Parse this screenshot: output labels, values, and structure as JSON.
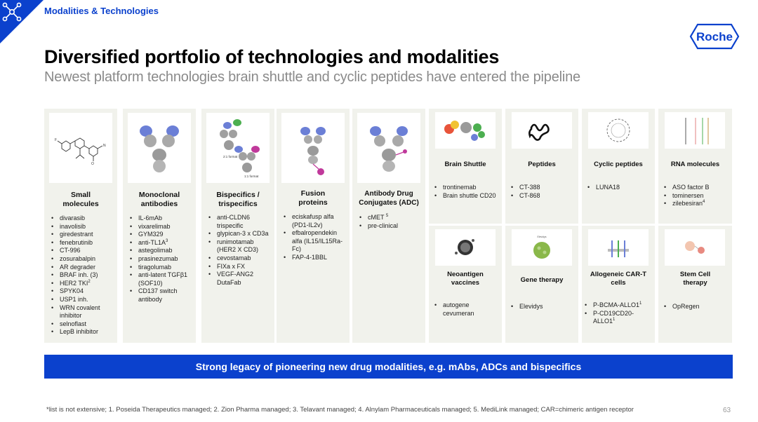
{
  "header": {
    "section": "Modalities & Technologies",
    "logo_text": "Roche",
    "title": "Diversified portfolio of technologies and modalities",
    "subtitle": "Newest platform technologies brain shuttle and cyclic peptides have entered the pipeline"
  },
  "columns": [
    {
      "title": [
        "Small",
        "molecules"
      ],
      "items": [
        "divarasib",
        "inavolisib",
        "giredestrant",
        "fenebrutinib",
        "CT-996",
        "zosurabalpin",
        "AR degrader",
        "BRAF inh. (3)",
        "HER2 TKI",
        "SPYK04",
        "USP1 inh.",
        "WRN covalent inhibitor",
        "selnoflast",
        "LepB inhibitor"
      ]
    },
    {
      "title": [
        "Monoclonal",
        "antibodies"
      ],
      "items": [
        "IL-6mAb",
        "vixarelimab",
        "GYM329",
        "anti-TL1A",
        "astegolimab",
        "prasinezumab",
        "tiragolumab",
        "anti-latent TGFβ1 (SOF10)",
        "CD137 switch antibody"
      ]
    },
    {
      "title": [
        "Bispecifics /",
        "trispecifics"
      ],
      "items": [
        "anti-CLDN6 trispecific",
        "glypican-3 x CD3a",
        "runimotamab (HER2 X CD3)",
        "cevostamab",
        "FIXa x FX",
        "VEGF-ANG2 DutaFab"
      ]
    },
    {
      "title": [
        "Fusion",
        "proteins"
      ],
      "items": [
        "eciskafusp alfa (PD1-IL2v)",
        "efbalropendekin alfa (IL15/IL15Ra-Fc)",
        "FAP-4-1BBL"
      ]
    },
    {
      "title": [
        "Antibody Drug",
        "Conjugates (ADC)"
      ],
      "items": [
        "cMET",
        "pre-clinical"
      ]
    }
  ],
  "sups": {
    "her2": "2",
    "tl1a": "3",
    "cmet": "5",
    "zilebesiran": "4",
    "allo1": "1",
    "allo2": "1"
  },
  "bispecific_labels": {
    "format21": "2:1 format",
    "format11": "1:1 format"
  },
  "gene_label": "Elevidys",
  "cells_top": [
    {
      "title": "Brain Shuttle",
      "items": [
        "trontinemab",
        "Brain shuttle CD20"
      ]
    },
    {
      "title": "Peptides",
      "items": [
        "CT-388",
        "CT-868"
      ]
    },
    {
      "title": "Cyclic peptides",
      "items": [
        "LUNA18"
      ]
    },
    {
      "title": "RNA molecules",
      "items": [
        "ASO factor B",
        "tominersen",
        "zilebesiran"
      ]
    }
  ],
  "cells_bottom": [
    {
      "title": [
        "Neoantigen",
        "vaccines"
      ],
      "items": [
        "autogene cevumeran"
      ]
    },
    {
      "title": [
        "Gene therapy"
      ],
      "items": [
        "Elevidys"
      ]
    },
    {
      "title": [
        "Allogeneic CAR-T",
        "cells"
      ],
      "items": [
        "P-BCMA-ALLO1",
        "P-CD19CD20-ALLO1"
      ]
    },
    {
      "title": [
        "Stem Cell",
        "therapy"
      ],
      "items": [
        "OpRegen"
      ]
    }
  ],
  "banner": "Strong legacy of pioneering new drug modalities, e.g. mAbs, ADCs and bispecifics",
  "footnote": "*list is not extensive; 1. Poseida Therapeutics managed; 2. Zion Pharma managed; 3. Telavant managed; 4. Alnylam Pharmaceuticals managed; 5. MediLink managed; CAR=chimeric antigen receptor",
  "page_number": "63",
  "colors": {
    "brand_blue": "#0b41cd",
    "panel": "#f1f2ec"
  }
}
